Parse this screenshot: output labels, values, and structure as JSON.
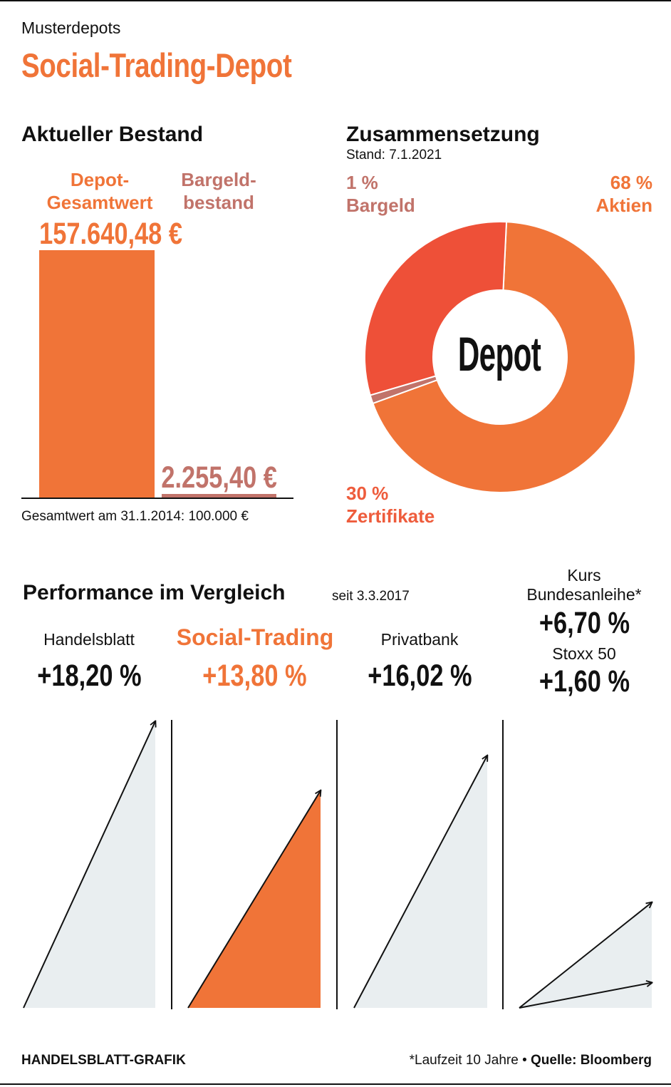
{
  "header": {
    "kicker": "Musterdepots",
    "title": "Social-Trading-Depot"
  },
  "bestand": {
    "title": "Aktueller Bestand",
    "depot_label_1": "Depot-",
    "depot_label_2": "Gesamtwert",
    "depot_value": "157.640,48 €",
    "cash_label_1": "Bargeld-",
    "cash_label_2": "bestand",
    "cash_value": "2.255,40 €",
    "footnote": "Gesamtwert am 31.1.2014: 100.000 €"
  },
  "zusammensetzung": {
    "title": "Zusammensetzung",
    "stand": "Stand: 7.1.2021",
    "center_label": "Depot",
    "segments": [
      {
        "name": "Aktien",
        "pct_label": "68 %",
        "color": "#f07438"
      },
      {
        "name": "Zertifikate",
        "pct_label": "30 %",
        "color": "#ee5038"
      },
      {
        "name": "Bargeld",
        "pct_label": "1 %",
        "color": "#c1736a"
      }
    ]
  },
  "performance": {
    "title": "Performance im Vergleich",
    "since": "seit 3.3.2017",
    "panels": [
      {
        "name": "Handelsblatt",
        "value": "+18,20 %"
      },
      {
        "name": "Social-Trading",
        "value": "+13,80 %"
      },
      {
        "name": "Privatbank",
        "value": "+16,02 %"
      },
      {
        "name_1": "Kurs",
        "name_2": "Bundesanleihe*",
        "value": "+6,70 %",
        "name_b": "Stoxx 50",
        "value_b": "+1,60 %"
      }
    ]
  },
  "footer": {
    "credit": "HANDELSBLATT-GRAFIK",
    "note": "*Laufzeit 10 Jahre",
    "bullet": "•",
    "source": "Quelle: Bloomberg"
  },
  "colors": {
    "accent": "#f07438",
    "cash": "#c1736a",
    "zert": "#ee5038",
    "panel_gray": "#e9eef0",
    "ink": "#111111"
  },
  "chart_data": [
    {
      "type": "bar",
      "title": "Aktueller Bestand",
      "categories": [
        "Depot-Gesamtwert",
        "Bargeldbestand"
      ],
      "values": [
        157640.48,
        2255.4
      ],
      "unit": "€"
    },
    {
      "type": "pie",
      "title": "Zusammensetzung",
      "subtitle": "Stand: 7.1.2021",
      "labels": [
        "Aktien",
        "Zertifikate",
        "Bargeld"
      ],
      "values": [
        68,
        30,
        1
      ],
      "unit": "%"
    },
    {
      "type": "area",
      "title": "Performance im Vergleich",
      "subtitle": "seit 3.3.2017",
      "series": [
        {
          "name": "Handelsblatt",
          "value": 18.2
        },
        {
          "name": "Social-Trading",
          "value": 13.8
        },
        {
          "name": "Privatbank",
          "value": 16.02
        },
        {
          "name": "Kurs Bundesanleihe*",
          "value": 6.7
        },
        {
          "name": "Stoxx 50",
          "value": 1.6
        }
      ],
      "unit": "%"
    }
  ]
}
